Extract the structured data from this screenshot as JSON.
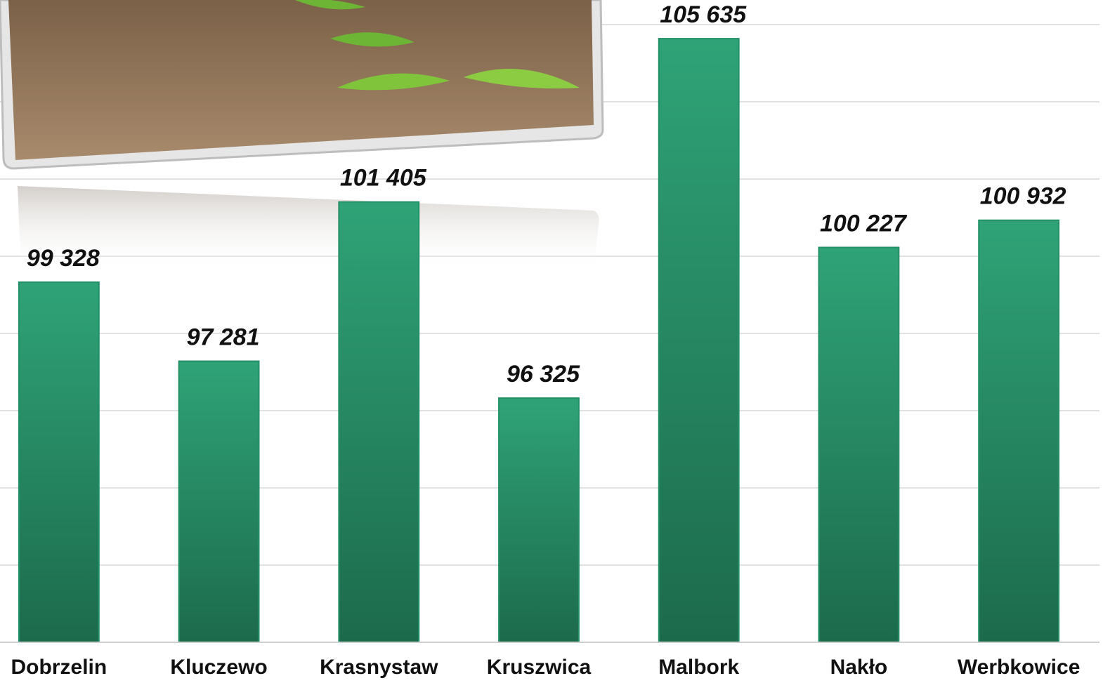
{
  "chart_data": {
    "type": "bar",
    "categories": [
      "Dobrzelin",
      "Kluczewo",
      "Krasnystaw",
      "Kruszwica",
      "Malbork",
      "Nakło",
      "Werbkowice"
    ],
    "values": [
      99328,
      97281,
      101405,
      96325,
      105635,
      100227,
      100932
    ],
    "value_labels": [
      "99 328",
      "97 281",
      "101 405",
      "96 325",
      "105 635",
      "100 227",
      "100 932"
    ],
    "color": "#239068",
    "ylim": [
      90000,
      106000
    ],
    "yticks": [
      90000,
      92000,
      94000,
      96000,
      98000,
      100000,
      102000,
      104000,
      106000
    ],
    "grid": true
  }
}
